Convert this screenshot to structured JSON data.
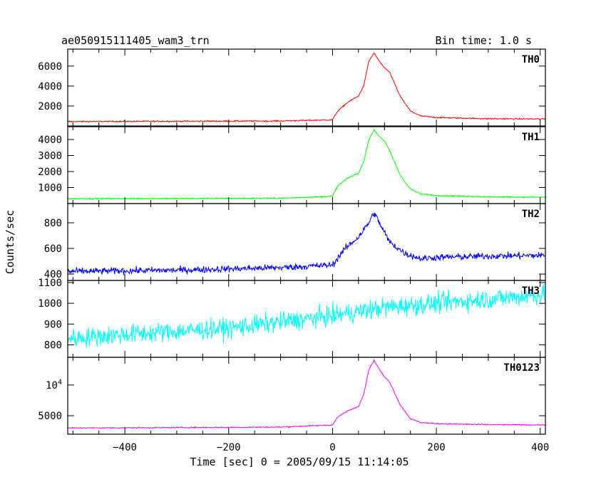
{
  "chart_data": {
    "type": "line",
    "title": "ae050915111405_wam3_trn",
    "subtitle": "Bin time: 1.0 s",
    "xlabel": "Time [sec] 0 = 2005/09/15 11:14:05",
    "ylabel": "Counts/sec",
    "xlim": [
      -510,
      410
    ],
    "x_ticks": [
      -400,
      -200,
      0,
      200,
      400
    ],
    "x_tick_labels": [
      "−400",
      "−200",
      "0",
      "200",
      "400"
    ],
    "grid": false,
    "panels": [
      {
        "name": "TH0",
        "color": "#ff0000",
        "ylim": [
          0,
          7700
        ],
        "noise": 60,
        "y_ticks": [
          2000,
          4000,
          6000
        ],
        "y_tick_labels": [
          "2000",
          "4000",
          "6000"
        ],
        "profile": [
          [
            -510,
            450
          ],
          [
            -100,
            500
          ],
          [
            0,
            620
          ],
          [
            10,
            1500
          ],
          [
            30,
            2400
          ],
          [
            50,
            3000
          ],
          [
            60,
            4000
          ],
          [
            70,
            6500
          ],
          [
            80,
            7300
          ],
          [
            90,
            6500
          ],
          [
            100,
            5800
          ],
          [
            110,
            5400
          ],
          [
            130,
            3000
          ],
          [
            150,
            1500
          ],
          [
            170,
            1000
          ],
          [
            200,
            850
          ],
          [
            300,
            720
          ],
          [
            400,
            700
          ]
        ]
      },
      {
        "name": "TH1",
        "color": "#00ff00",
        "ylim": [
          0,
          4800
        ],
        "noise": 40,
        "y_ticks": [
          1000,
          2000,
          3000,
          4000
        ],
        "y_tick_labels": [
          "1000",
          "2000",
          "3000",
          "4000"
        ],
        "profile": [
          [
            -510,
            300
          ],
          [
            -100,
            330
          ],
          [
            0,
            450
          ],
          [
            10,
            1100
          ],
          [
            30,
            1600
          ],
          [
            50,
            1900
          ],
          [
            60,
            2600
          ],
          [
            70,
            4000
          ],
          [
            80,
            4600
          ],
          [
            90,
            4200
          ],
          [
            100,
            3900
          ],
          [
            110,
            3300
          ],
          [
            130,
            1800
          ],
          [
            150,
            900
          ],
          [
            170,
            600
          ],
          [
            200,
            500
          ],
          [
            300,
            420
          ],
          [
            400,
            400
          ]
        ]
      },
      {
        "name": "TH2",
        "color": "#0000ff",
        "ylim": [
          350,
          950
        ],
        "noise": 25,
        "y_ticks": [
          400,
          600,
          800
        ],
        "y_tick_labels": [
          "400",
          "600",
          "800"
        ],
        "profile": [
          [
            -510,
            420
          ],
          [
            -300,
            430
          ],
          [
            -100,
            450
          ],
          [
            0,
            470
          ],
          [
            20,
            580
          ],
          [
            50,
            690
          ],
          [
            70,
            800
          ],
          [
            80,
            880
          ],
          [
            90,
            800
          ],
          [
            110,
            650
          ],
          [
            140,
            560
          ],
          [
            170,
            520
          ],
          [
            200,
            530
          ],
          [
            300,
            540
          ],
          [
            400,
            545
          ]
        ]
      },
      {
        "name": "TH3",
        "color": "#00ffff",
        "ylim": [
          740,
          1110
        ],
        "noise": 45,
        "y_ticks": [
          800,
          900,
          1000,
          1100
        ],
        "y_tick_labels": [
          "800",
          "900",
          "1000",
          "1100"
        ],
        "profile": [
          [
            -510,
            830
          ],
          [
            -400,
            850
          ],
          [
            -200,
            880
          ],
          [
            0,
            940
          ],
          [
            100,
            980
          ],
          [
            200,
            1000
          ],
          [
            300,
            1020
          ],
          [
            400,
            1040
          ]
        ]
      },
      {
        "name": "TH0123",
        "color": "#ff00ff",
        "ylim": [
          2000,
          14500
        ],
        "noise": 90,
        "y_ticks": [
          5000,
          10000
        ],
        "y_tick_labels": [
          "5000",
          "10^4"
        ],
        "profile": [
          [
            -510,
            3000
          ],
          [
            -100,
            3150
          ],
          [
            0,
            3500
          ],
          [
            10,
            4800
          ],
          [
            30,
            5800
          ],
          [
            50,
            6500
          ],
          [
            60,
            8500
          ],
          [
            70,
            12500
          ],
          [
            80,
            14000
          ],
          [
            90,
            12600
          ],
          [
            100,
            11300
          ],
          [
            110,
            10500
          ],
          [
            130,
            6800
          ],
          [
            150,
            4500
          ],
          [
            170,
            3900
          ],
          [
            200,
            3700
          ],
          [
            300,
            3550
          ],
          [
            400,
            3500
          ]
        ]
      }
    ]
  }
}
